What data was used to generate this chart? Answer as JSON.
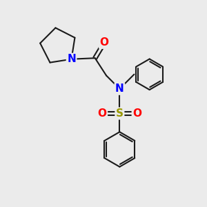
{
  "bg_color": "#ebebeb",
  "bond_color": "#1a1a1a",
  "N_color": "#0000ff",
  "O_color": "#ff0000",
  "S_color": "#999900",
  "bond_width": 1.5,
  "font_size_atom": 11,
  "fig_size": [
    3.0,
    3.0
  ],
  "dpi": 100,
  "xlim": [
    0,
    10
  ],
  "ylim": [
    0,
    10
  ]
}
